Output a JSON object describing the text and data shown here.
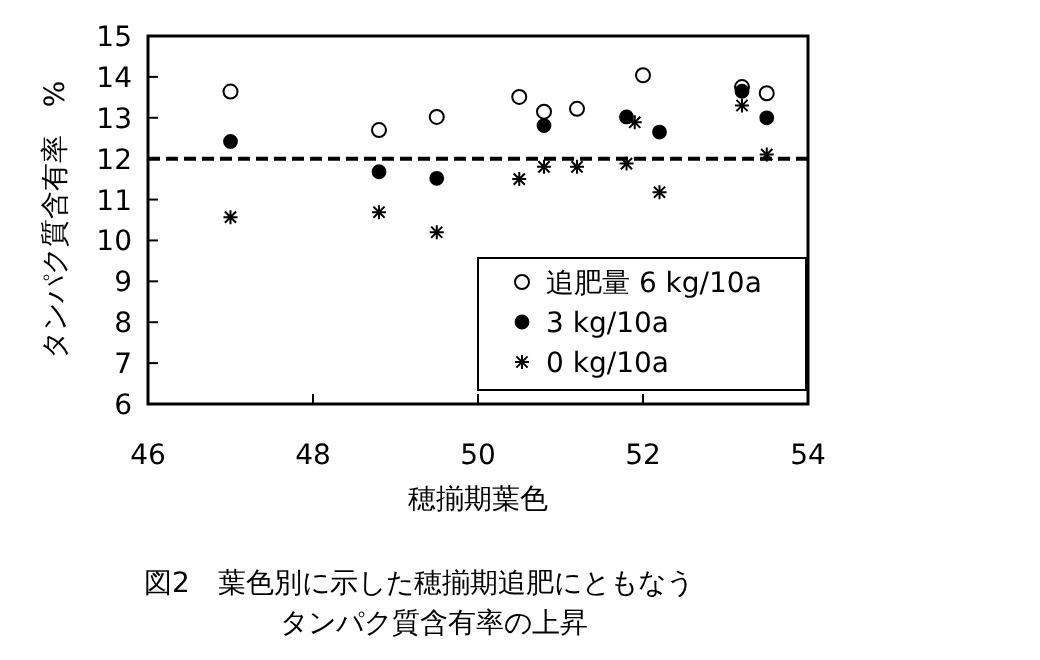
{
  "chart_data": {
    "type": "scatter",
    "title": "図2　葉色別に示した穂揃期追肥にともなうタンパク質含有率の上昇",
    "xlabel": "穂揃期葉色",
    "ylabel": "タンパク質含有率　%",
    "xlim": [
      46,
      54
    ],
    "xticks": [
      46,
      48,
      50,
      52,
      54
    ],
    "ylim": [
      6,
      15
    ],
    "yticks": [
      6,
      7,
      8,
      9,
      10,
      11,
      12,
      13,
      14,
      15
    ],
    "grid": false,
    "legend": "bottom right",
    "ref_lines": [
      {
        "axis": "y",
        "value": 12,
        "color": "#000000",
        "line_style": "dashed"
      }
    ],
    "series": [
      {
        "name": "追肥量 6 kg/10a",
        "color": "#000000",
        "marker": "open_circle",
        "x": [
          47.0,
          48.8,
          49.5,
          50.5,
          50.8,
          51.2,
          52.0,
          53.2,
          53.5
        ],
        "values": [
          13.64,
          12.7,
          13.02,
          13.51,
          13.15,
          13.22,
          14.04,
          13.75,
          13.6
        ]
      },
      {
        "name": "3 kg/10a",
        "color": "#000000",
        "marker": "circle",
        "x": [
          47.0,
          48.8,
          49.5,
          50.8,
          51.8,
          52.2,
          53.2,
          53.5
        ],
        "values": [
          12.42,
          11.68,
          11.52,
          12.81,
          13.02,
          12.65,
          13.65,
          13.0
        ]
      },
      {
        "name": "0 kg/10a",
        "color": "#000000",
        "marker": "cross",
        "x": [
          47.0,
          48.8,
          49.5,
          50.5,
          50.8,
          51.2,
          51.8,
          51.9,
          52.2,
          53.2,
          53.5
        ],
        "values": [
          10.57,
          10.69,
          10.2,
          11.5,
          11.8,
          11.8,
          11.88,
          12.89,
          11.18,
          13.3,
          12.1
        ]
      }
    ]
  }
}
